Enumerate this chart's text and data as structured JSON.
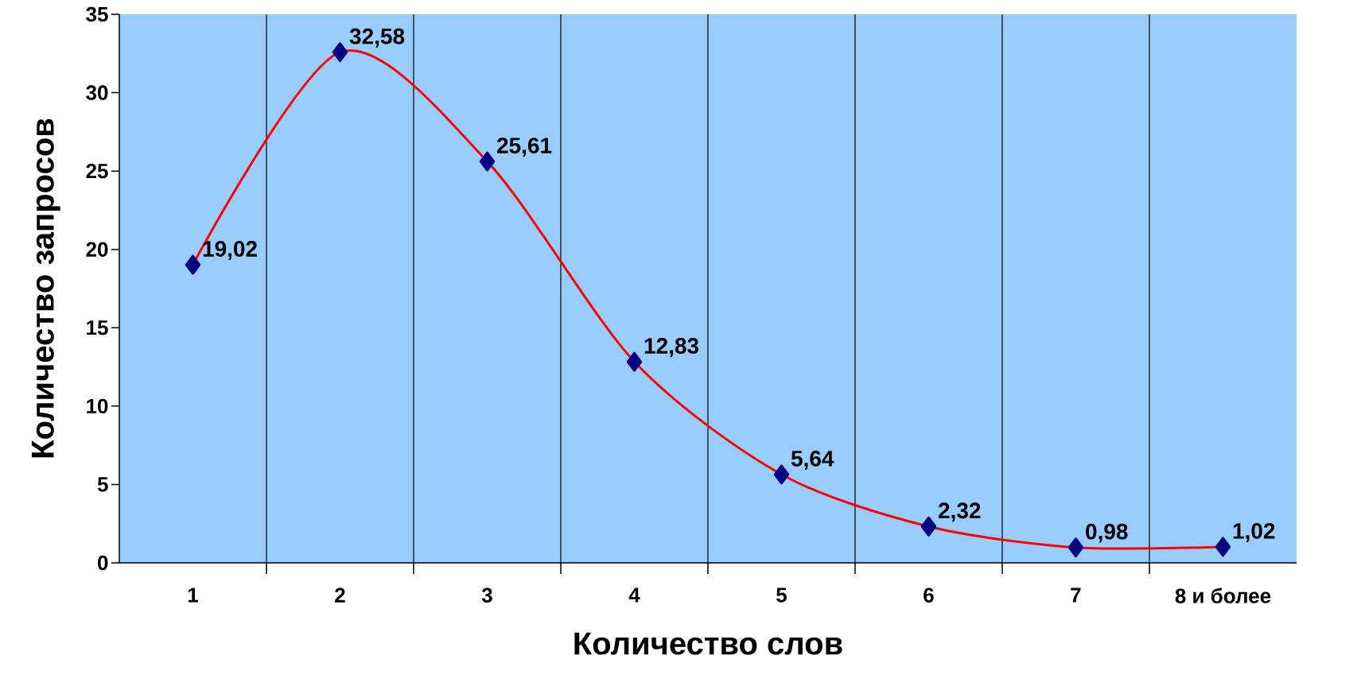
{
  "chart_data": {
    "type": "line",
    "xlabel": "Количество слов",
    "ylabel": "Количество запросов",
    "categories": [
      "1",
      "2",
      "3",
      "4",
      "5",
      "6",
      "7",
      "8 и более"
    ],
    "series": [
      {
        "color": "#ff0000",
        "values": [
          19.02,
          32.58,
          25.61,
          12.83,
          5.64,
          2.32,
          0.98,
          1.02
        ],
        "value_labels": [
          "19,02",
          "32,58",
          "25,61",
          "12,83",
          "5,64",
          "2,32",
          "0,98",
          "1,02"
        ]
      }
    ],
    "ylim": [
      0,
      35
    ],
    "yticks": [
      0,
      5,
      10,
      15,
      20,
      25,
      30,
      35
    ],
    "grid": "x",
    "marker": "diamond"
  }
}
